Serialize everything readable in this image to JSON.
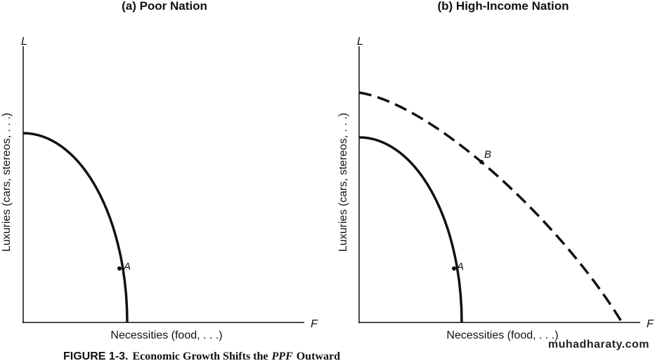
{
  "panels": [
    {
      "title": "(a) Poor Nation",
      "y_letter": "L",
      "x_letter": "F",
      "y_label": "Luxuries (cars, stereos, . . .)",
      "x_label": "Necessities (food, . . .)",
      "points": [
        "A"
      ]
    },
    {
      "title": "(b) High-Income Nation",
      "y_letter": "L",
      "x_letter": "F",
      "y_label": "Luxuries (cars, stereos, . . .)",
      "x_label": "Necessities (food, . . .)",
      "points": [
        "A",
        "B"
      ]
    }
  ],
  "caption": {
    "label": "FIGURE 1-3.",
    "text_before": "Economic Growth Shifts the",
    "emphasis": "PPF",
    "text_after": "Outward"
  },
  "watermark": "muhadharaty.com"
}
